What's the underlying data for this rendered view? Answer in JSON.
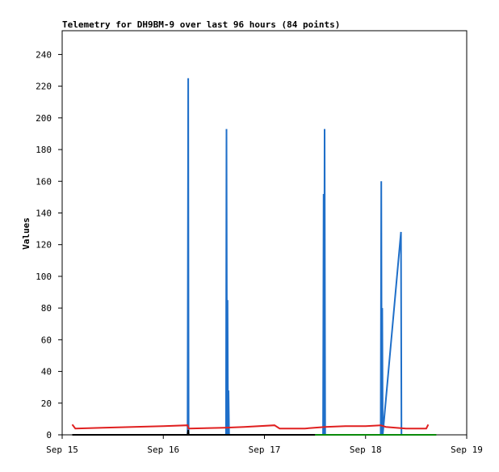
{
  "chart_data": {
    "type": "line",
    "title": "Telemetry for DH9BM-9 over last 96 hours (84 points)",
    "xlabel": "",
    "ylabel": "Values",
    "ylim": [
      0,
      255
    ],
    "yticks": [
      0,
      20,
      40,
      60,
      80,
      100,
      120,
      140,
      160,
      180,
      200,
      220,
      240
    ],
    "xlim": [
      0,
      4
    ],
    "xticks": [
      {
        "x": 0,
        "label": "Sep 15"
      },
      {
        "x": 1,
        "label": "Sep 16"
      },
      {
        "x": 2,
        "label": "Sep 17"
      },
      {
        "x": 3,
        "label": "Sep 18"
      },
      {
        "x": 4,
        "label": "Sep 19"
      }
    ],
    "grid": false,
    "legend": "none",
    "series": [
      {
        "color": "#1f6fc9",
        "x": [
          0.16,
          1.24,
          1.246,
          1.25,
          1.62,
          1.625,
          1.63,
          1.635,
          1.64,
          1.645,
          1.65,
          2.58,
          2.585,
          2.59,
          2.595,
          2.6,
          3.15,
          3.155,
          3.16,
          3.165,
          3.17,
          3.35,
          3.355,
          3.36,
          3.62
        ],
        "y": [
          0,
          0,
          225,
          0,
          0,
          193,
          0,
          85,
          0,
          28,
          0,
          0,
          152,
          0,
          193,
          0,
          0,
          160,
          0,
          80,
          0,
          128,
          0,
          0,
          0
        ]
      },
      {
        "color": "#e02020",
        "x": [
          0.1,
          0.13,
          0.4,
          0.7,
          1.0,
          1.24,
          1.25,
          1.6,
          1.8,
          2.1,
          2.15,
          2.4,
          2.6,
          2.8,
          3.0,
          3.15,
          3.2,
          3.4,
          3.6,
          3.62
        ],
        "y": [
          6.5,
          4,
          4.5,
          5,
          5.5,
          6,
          4,
          4.5,
          5,
          6,
          4,
          4,
          5,
          5.5,
          5.5,
          6,
          5,
          4,
          4,
          6.5
        ]
      },
      {
        "color": "#000000",
        "x": [
          0.1,
          1.24,
          1.246,
          1.25,
          3.62
        ],
        "y": [
          0,
          0,
          3,
          0,
          0
        ]
      },
      {
        "color": "#0a8a0a",
        "x": [
          2.5,
          3.7
        ],
        "y": [
          0,
          0
        ]
      }
    ]
  }
}
